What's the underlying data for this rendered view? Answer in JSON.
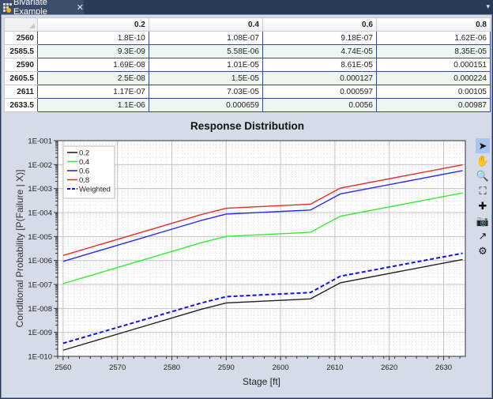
{
  "tab": {
    "title": "Bivariate Example",
    "close_glyph": "✕",
    "menu_glyph": "▾"
  },
  "table": {
    "columns": [
      "0.2",
      "0.4",
      "0.6",
      "0.8"
    ],
    "rows": [
      {
        "stage": "2560",
        "values": [
          "1.8E-10",
          "1.08E-07",
          "9.18E-07",
          "1.62E-06"
        ]
      },
      {
        "stage": "2585.5",
        "values": [
          "9.3E-09",
          "5.58E-06",
          "4.74E-05",
          "8.35E-05"
        ]
      },
      {
        "stage": "2590",
        "values": [
          "1.69E-08",
          "1.01E-05",
          "8.61E-05",
          "0.000151"
        ]
      },
      {
        "stage": "2605.5",
        "values": [
          "2.5E-08",
          "1.5E-05",
          "0.000127",
          "0.000224"
        ]
      },
      {
        "stage": "2611",
        "values": [
          "1.17E-07",
          "7.03E-05",
          "0.000597",
          "0.00105"
        ]
      },
      {
        "stage": "2633.5",
        "values": [
          "1.1E-06",
          "0.000659",
          "0.0056",
          "0.00987"
        ]
      }
    ]
  },
  "toolbar": [
    {
      "name": "pointer-tool",
      "glyph": "➤",
      "active": true
    },
    {
      "name": "pan-tool",
      "glyph": "✋",
      "active": false
    },
    {
      "name": "zoom-tool",
      "glyph": "🔍",
      "active": false
    },
    {
      "name": "zoom-extents-tool",
      "glyph": "⛶",
      "active": false
    },
    {
      "name": "crosshair-tool",
      "glyph": "✚",
      "active": false
    },
    {
      "name": "snapshot-tool",
      "glyph": "📷",
      "active": false
    },
    {
      "name": "export-tool",
      "glyph": "↗",
      "active": false
    },
    {
      "name": "settings-tool",
      "glyph": "⚙",
      "active": false
    }
  ],
  "chart_data": {
    "type": "line",
    "title": "Response Distribution",
    "xlabel": "Stage [ft]",
    "ylabel": "Conditional Probability  [P(Failure | X)]",
    "yscale": "log",
    "xlim": [
      2559,
      2634
    ],
    "ylim": [
      1e-10,
      0.1
    ],
    "xticks": [
      "2560",
      "2570",
      "2580",
      "2590",
      "2600",
      "2610",
      "2620",
      "2630"
    ],
    "yticks": [
      "1E-010",
      "1E-009",
      "1E-008",
      "1E-007",
      "1E-006",
      "1E-005",
      "1E-004",
      "1E-003",
      "1E-002",
      "1E-001"
    ],
    "grid": true,
    "legend_position": "top-left",
    "x": [
      2560,
      2585.5,
      2590,
      2605.5,
      2611,
      2633.5
    ],
    "series": [
      {
        "name": "0.2",
        "color": "#222222",
        "dash": false,
        "values": [
          1.8e-10,
          9.3e-09,
          1.69e-08,
          2.5e-08,
          1.17e-07,
          1.1e-06
        ]
      },
      {
        "name": "0.4",
        "color": "#33ee33",
        "dash": false,
        "values": [
          1.08e-07,
          5.58e-06,
          1.01e-05,
          1.5e-05,
          7.03e-05,
          0.000659
        ]
      },
      {
        "name": "0.6",
        "color": "#2a2aee",
        "dash": false,
        "values": [
          9.18e-07,
          4.74e-05,
          8.61e-05,
          0.000127,
          0.000597,
          0.0056
        ]
      },
      {
        "name": "0.8",
        "color": "#ee2a2a",
        "dash": false,
        "values": [
          1.62e-06,
          8.35e-05,
          0.000151,
          0.000224,
          0.00105,
          0.00987
        ]
      },
      {
        "name": "Weighted",
        "color": "#1010ee",
        "dash": true,
        "values": [
          3.5e-10,
          1.7e-08,
          3.1e-08,
          4.6e-08,
          2.2e-07,
          2e-06
        ]
      }
    ]
  }
}
